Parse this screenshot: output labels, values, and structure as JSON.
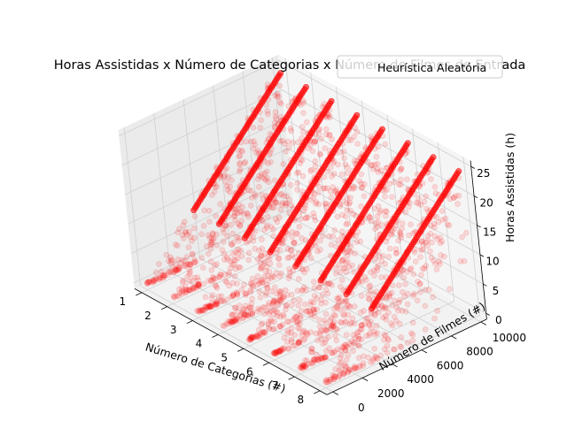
{
  "chart_data": {
    "type": "scatter",
    "projection": "3d",
    "title": "Horas Assistidas x Número de Categorias x Número de Filmes de Entrada",
    "xlabel": "Número de Categorias (#)",
    "ylabel": "Número de Filmes (#)",
    "zlabel": "Horas Assistidas (h)",
    "xticks": [
      "1",
      "2",
      "3",
      "4",
      "5",
      "6",
      "7",
      "8"
    ],
    "yticks": [
      "0",
      "2000",
      "4000",
      "6000",
      "8000",
      "10000"
    ],
    "zticks": [
      "0",
      "5",
      "10",
      "15",
      "20",
      "25"
    ],
    "xlim": [
      1,
      8
    ],
    "ylim": [
      0,
      10000
    ],
    "zlim": [
      0,
      25
    ],
    "grid": true,
    "legend_position": "top-right",
    "series": [
      {
        "name": "Heurística Aleatória",
        "color": "#ff0000",
        "marker_alpha": 0.1,
        "description_values": {
          "x_categories": [
            1,
            2,
            3,
            4,
            5,
            6,
            7,
            8
          ],
          "y_range": [
            0,
            10000
          ],
          "z_range": [
            0,
            24
          ]
        }
      }
    ]
  }
}
